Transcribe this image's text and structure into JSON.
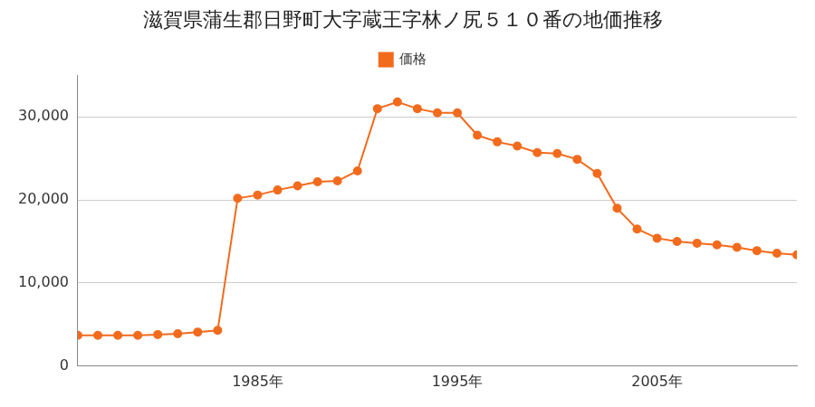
{
  "chart_data": {
    "type": "line",
    "title": "滋賀県蒲生郡日野町大字蔵王字林ノ尻５１０番の地価推移",
    "categories": [
      null,
      null,
      null,
      null,
      null,
      null,
      null,
      null,
      null,
      "1985年",
      null,
      null,
      null,
      null,
      null,
      null,
      null,
      null,
      null,
      "1995年",
      null,
      null,
      null,
      null,
      null,
      null,
      null,
      null,
      null,
      "2005年",
      null,
      null,
      null,
      null,
      null,
      null,
      null
    ],
    "series": [
      {
        "name": "価格",
        "color": "#f26b1d",
        "marker": "circle",
        "line_style": "solid",
        "values": [
          3700,
          3700,
          3700,
          3700,
          3800,
          3900,
          4100,
          4300,
          20200,
          20600,
          21200,
          21700,
          22200,
          22300,
          23500,
          31000,
          31800,
          31000,
          30500,
          30500,
          27800,
          27000,
          26500,
          25700,
          25600,
          24900,
          23200,
          19000,
          16500,
          15400,
          15000,
          14800,
          14600,
          14300,
          13900,
          13600,
          13400
        ]
      }
    ],
    "ylim": [
      0,
      35000
    ],
    "yticks": [
      0,
      {
        "value": 10000,
        "label": "10,000"
      },
      {
        "value": 20000,
        "label": "20,000"
      },
      {
        "value": 30000,
        "label": "30,000"
      }
    ],
    "grid": true,
    "legend": "top"
  }
}
